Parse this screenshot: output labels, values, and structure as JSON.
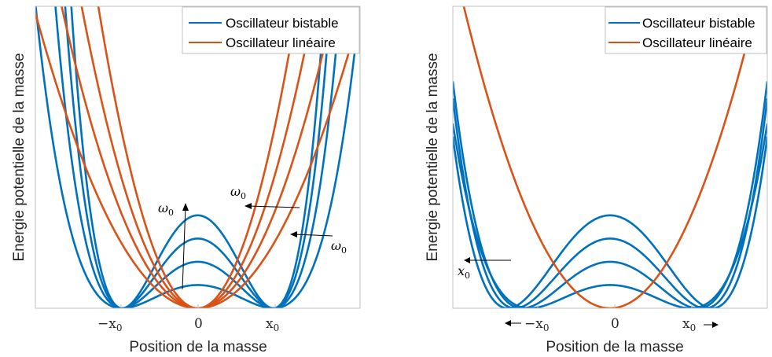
{
  "colors": {
    "bistable": "#0072BD",
    "lineaire": "#D95319",
    "axes": "#bfbfbf",
    "text": "#262626"
  },
  "chart_data": [
    {
      "type": "line",
      "title": "",
      "xlabel": "Position de la masse",
      "ylabel": "Energie potentielle de la masse",
      "xlim": [
        -2.15,
        2.15
      ],
      "ylim": [
        0,
        2.6
      ],
      "x_ticks": [
        {
          "value": -1,
          "label": "−x",
          "sub": "0"
        },
        {
          "value": 0,
          "label": "0",
          "sub": ""
        },
        {
          "value": 1,
          "label": "x",
          "sub": "0"
        }
      ],
      "legend": {
        "position": "top-right",
        "entries": [
          "Oscillateur bistable",
          "Oscillateur linéaire"
        ]
      },
      "series": [
        {
          "name": "Oscillateur bistable",
          "kind": "bistable",
          "x0": 1,
          "barrier_heights": [
            0.2,
            0.4,
            0.6,
            0.8
          ]
        },
        {
          "name": "Oscillateur linéaire",
          "kind": "linear",
          "k_values": [
            0.55,
            0.8,
            1.1,
            1.5
          ]
        }
      ],
      "annotations": [
        {
          "text": "ω",
          "sub": "0",
          "label": "omega0-vertical"
        },
        {
          "text": "ω",
          "sub": "0",
          "label": "omega0-upper"
        },
        {
          "text": "ω",
          "sub": "0",
          "label": "omega0-lower"
        }
      ]
    },
    {
      "type": "line",
      "title": "",
      "xlabel": "Position de la masse",
      "ylabel": "Energie potentielle de la masse",
      "xlim": [
        -2.15,
        2.15
      ],
      "ylim": [
        0,
        2.6
      ],
      "x_ticks": [
        {
          "value": -1,
          "label": "−x",
          "sub": "0",
          "arrow": "left"
        },
        {
          "value": 0,
          "label": "0",
          "sub": ""
        },
        {
          "value": 1,
          "label": "x",
          "sub": "0",
          "arrow": "right"
        }
      ],
      "legend": {
        "position": "top-right",
        "entries": [
          "Oscillateur bistable",
          "Oscillateur linéaire"
        ]
      },
      "series": [
        {
          "name": "Oscillateur bistable",
          "kind": "bistable",
          "x0_values": [
            1.1,
            1.2,
            1.3,
            1.4
          ],
          "barrier_heights": [
            0.2,
            0.4,
            0.6,
            0.8
          ]
        },
        {
          "name": "Oscillateur linéaire",
          "kind": "linear",
          "k_values": [
            0.65
          ]
        }
      ],
      "annotations": [
        {
          "text": "x",
          "sub": "0",
          "label": "x0-arrow"
        }
      ]
    }
  ]
}
